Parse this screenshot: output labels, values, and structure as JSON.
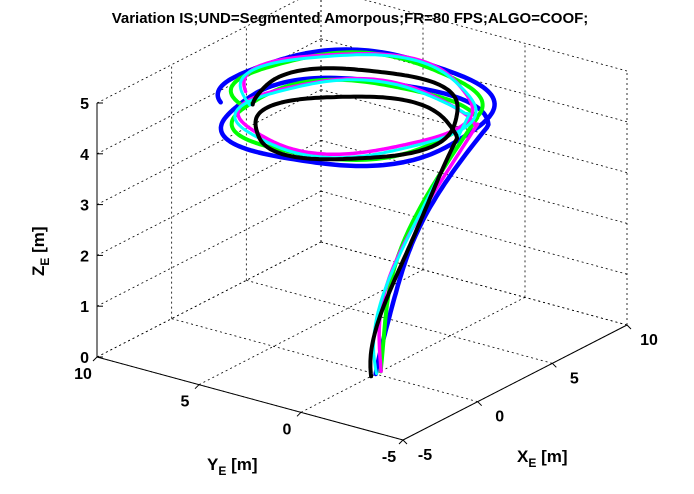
{
  "chart_data": {
    "type": "line",
    "title": "Variation IS;UND=Segmented Amorpous;FR=80 FPS;ALGO=COOF;",
    "xlabel": {
      "main": "X",
      "sub": "E",
      "unit": " [m]"
    },
    "ylabel": {
      "main": "Y",
      "sub": "E",
      "unit": " [m]"
    },
    "zlabel": {
      "main": "Z",
      "sub": "E",
      "unit": " [m]"
    },
    "xlim": [
      -5,
      10
    ],
    "ylim": [
      -5,
      10
    ],
    "zlim": [
      0,
      5
    ],
    "xticks": [
      -5,
      0,
      5,
      10
    ],
    "yticks": [
      -5,
      0,
      5,
      10
    ],
    "zticks": [
      0,
      1,
      2,
      3,
      4,
      5
    ],
    "grid": true,
    "view": "3d",
    "path_model": {
      "start": [
        0,
        0,
        0
      ],
      "climb_top_z": 3.8,
      "helix_center": [
        3.5,
        3.5
      ],
      "helix_radius": 4.8,
      "helix_z_range": [
        3.8,
        4.6
      ],
      "helix_turns": 1.5
    },
    "series": [
      {
        "color": "#0000ff",
        "width": 4.5,
        "radius_scale": 1.1,
        "phase": 0.0,
        "zshift": 0.0
      },
      {
        "color": "#00ff00",
        "width": 4.0,
        "radius_scale": 1.0,
        "phase": 0.12,
        "zshift": 0.05
      },
      {
        "color": "#ff00ff",
        "width": 3.5,
        "radius_scale": 0.95,
        "phase": -0.1,
        "zshift": 0.1
      },
      {
        "color": "#00ffff",
        "width": 3.0,
        "radius_scale": 0.97,
        "phase": 0.2,
        "zshift": 0.08
      },
      {
        "color": "#000000",
        "width": 4.0,
        "radius_scale": 0.86,
        "phase": -0.05,
        "zshift": -0.12
      }
    ]
  }
}
